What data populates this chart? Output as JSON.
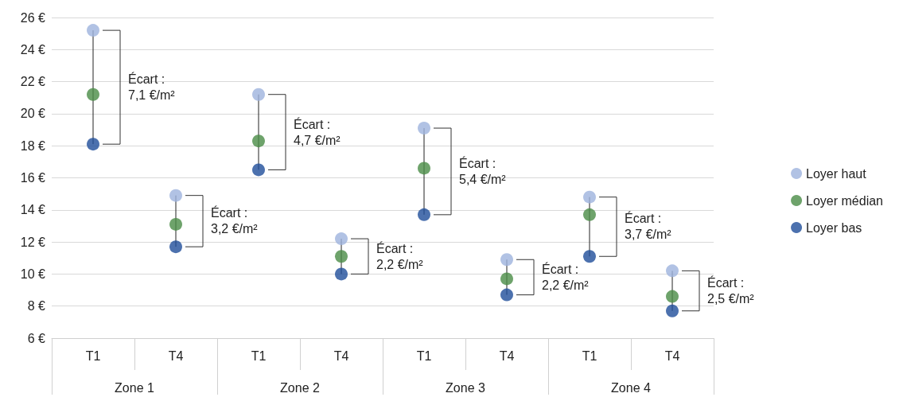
{
  "chart_data": {
    "type": "scatter",
    "categories": [
      "T1",
      "T4",
      "T1",
      "T4",
      "T1",
      "T4",
      "T1",
      "T4"
    ],
    "series": [
      {
        "name": "Loyer haut",
        "color": "#9db3dd",
        "values": [
          25.2,
          14.9,
          21.2,
          12.2,
          19.1,
          10.9,
          14.8,
          10.2
        ]
      },
      {
        "name": "Loyer médian",
        "color": "#4a8c46",
        "values": [
          21.2,
          13.1,
          18.3,
          11.1,
          16.6,
          9.7,
          13.7,
          8.6
        ]
      },
      {
        "name": "Loyer bas",
        "color": "#1f4e9a",
        "values": [
          18.1,
          11.7,
          16.5,
          10.0,
          13.7,
          8.7,
          11.1,
          7.7
        ]
      }
    ],
    "ylim": [
      6,
      26
    ],
    "yticks": [
      {
        "value": 6,
        "label": "6 €"
      },
      {
        "value": 8,
        "label": "8 €"
      },
      {
        "value": 10,
        "label": "10 €"
      },
      {
        "value": 12,
        "label": "12 €"
      },
      {
        "value": 14,
        "label": "14 €"
      },
      {
        "value": 16,
        "label": "16 €"
      },
      {
        "value": 18,
        "label": "18 €"
      },
      {
        "value": 20,
        "label": "20 €"
      },
      {
        "value": 22,
        "label": "22 €"
      },
      {
        "value": 24,
        "label": "24 €"
      },
      {
        "value": 26,
        "label": "26 €"
      }
    ],
    "grid": "y",
    "legend": "right",
    "marker": "circle",
    "annotations": [
      "Écart :\n7,1 €/m²",
      "Écart :\n3,2 €/m²",
      "Écart :\n4,7 €/m²",
      "Écart :\n2,2 €/m²",
      "Écart :\n5,4 €/m²",
      "Écart :\n2,2 €/m²",
      "Écart :\n3,7 €/m²",
      "Écart :\n2,5 €/m²",
      "Zone 1",
      "Zone 2",
      "Zone 3",
      "Zone 4"
    ]
  }
}
